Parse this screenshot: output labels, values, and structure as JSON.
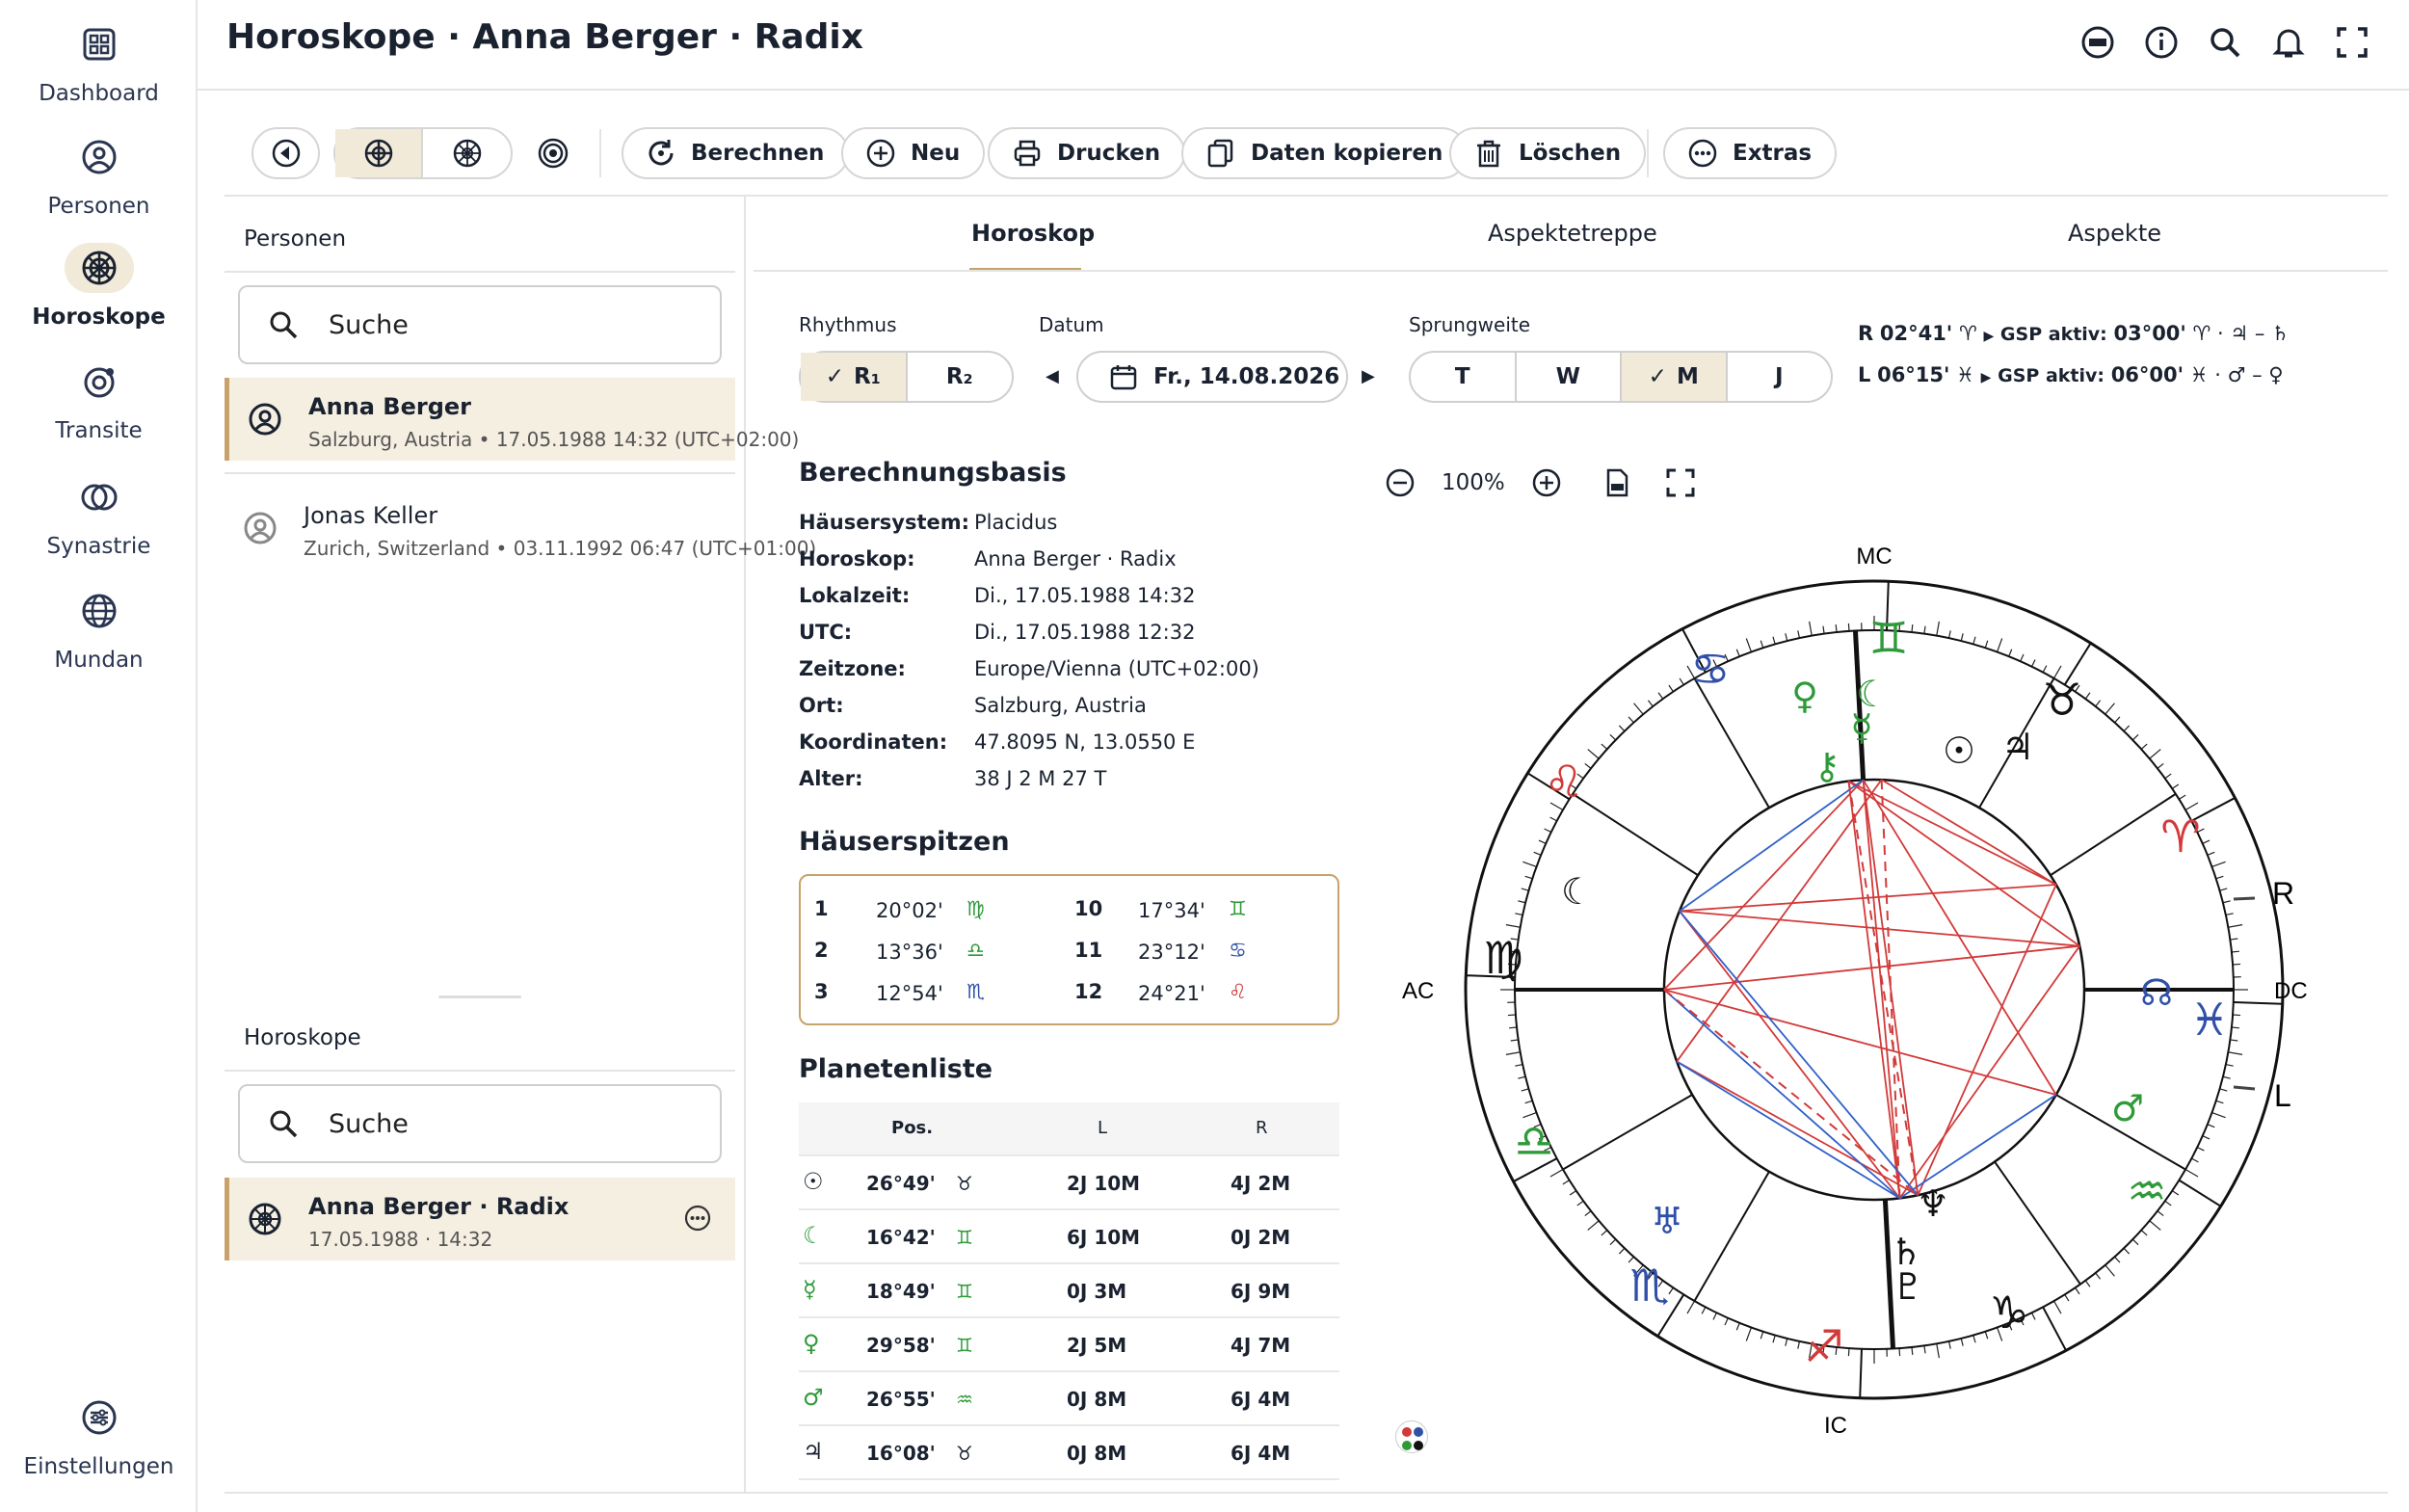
{
  "app": {
    "title": "Horoskope · Anna Berger · Radix"
  },
  "sidebar": {
    "items": [
      {
        "label": "Dashboard"
      },
      {
        "label": "Personen"
      },
      {
        "label": "Horoskope"
      },
      {
        "label": "Transite"
      },
      {
        "label": "Synastrie"
      },
      {
        "label": "Mundan"
      }
    ],
    "settings": "Einstellungen"
  },
  "toolbar": {
    "berechnen": "Berechnen",
    "neu": "Neu",
    "drucken": "Drucken",
    "kopieren": "Daten kopieren",
    "loeschen": "Löschen",
    "extras": "Extras"
  },
  "personen": {
    "title": "Personen",
    "search": "Suche",
    "items": [
      {
        "name": "Anna Berger",
        "sub": "Salzburg, Austria • 17.05.1988 14:32 (UTC+02:00)"
      },
      {
        "name": "Jonas Keller",
        "sub": "Zurich, Switzerland • 03.11.1992 06:47 (UTC+01:00)"
      }
    ]
  },
  "horoskope": {
    "title": "Horoskope",
    "search": "Suche",
    "items": [
      {
        "name": "Anna Berger · Radix",
        "sub": "17.05.1988 · 14:32"
      }
    ]
  },
  "tabs": [
    "Horoskop",
    "Aspektetreppe",
    "Aspekte"
  ],
  "controls": {
    "rhythmus_label": "Rhythmus",
    "r1": "R₁",
    "r2": "R₂",
    "datum_label": "Datum",
    "datum": "Fr., 14.08.2026",
    "sprung_label": "Sprungweite",
    "sprung": [
      "T",
      "W",
      "M",
      "J"
    ],
    "zoom": "100%"
  },
  "gsp": {
    "r_label": "R",
    "r_pos": "02°41'",
    "r_sign": "♈",
    "r_gsp": "GSP aktiv:",
    "r_gsp_val": "03°00'",
    "r_gsp_formula": "♈ · ♃ – ♄",
    "l_label": "L",
    "l_pos": "06°15'",
    "l_sign": "♓",
    "l_gsp": "GSP aktiv:",
    "l_gsp_val": "06°00'",
    "l_gsp_formula": "♓ · ♂ – ♀"
  },
  "basis": {
    "title": "Berechnungsbasis",
    "rows": [
      {
        "k": "Häusersystem:",
        "v": "Placidus"
      },
      {
        "k": "Horoskop:",
        "v": "Anna Berger · Radix"
      },
      {
        "k": "Lokalzeit:",
        "v": "Di., 17.05.1988 14:32"
      },
      {
        "k": "UTC:",
        "v": "Di., 17.05.1988 12:32"
      },
      {
        "k": "Zeitzone:",
        "v": "Europe/Vienna (UTC+02:00)"
      },
      {
        "k": "Ort:",
        "v": "Salzburg, Austria"
      },
      {
        "k": "Koordinaten:",
        "v": "47.8095 N, 13.0550 E"
      },
      {
        "k": "Alter:",
        "v": "38 J 2 M 27 T"
      }
    ]
  },
  "haeuser": {
    "title": "Häuserspitzen",
    "rows": [
      {
        "n": "1",
        "d": "20°02'",
        "s": "♍"
      },
      {
        "n": "2",
        "d": "13°36'",
        "s": "♎"
      },
      {
        "n": "3",
        "d": "12°54'",
        "s": "♏"
      },
      {
        "n": "10",
        "d": "17°34'",
        "s": "♊"
      },
      {
        "n": "11",
        "d": "23°12'",
        "s": "♋"
      },
      {
        "n": "12",
        "d": "24°21'",
        "s": "♌"
      }
    ]
  },
  "planeten": {
    "title": "Planetenliste",
    "headers": [
      "Pos.",
      "L",
      "R"
    ],
    "rows": [
      {
        "p": "☉",
        "pos": "26°49'",
        "s": "♉",
        "l": "2J 10M",
        "r": "4J 2M"
      },
      {
        "p": "☾",
        "pos": "16°42'",
        "s": "♊",
        "l": "6J 10M",
        "r": "0J 2M"
      },
      {
        "p": "☿",
        "pos": "18°49'",
        "s": "♊",
        "l": "0J 3M",
        "r": "6J 9M"
      },
      {
        "p": "♀",
        "pos": "29°58'",
        "s": "♊",
        "l": "2J 5M",
        "r": "4J 7M"
      },
      {
        "p": "♂",
        "pos": "26°55'",
        "s": "♒",
        "l": "0J 8M",
        "r": "6J 4M"
      },
      {
        "p": "♃",
        "pos": "16°08'",
        "s": "♉",
        "l": "0J 8M",
        "r": "6J 4M"
      }
    ]
  },
  "chart": {
    "mc": "MC",
    "ic": "IC",
    "ac": "AC",
    "dc": "DC",
    "r": "R",
    "l": "L"
  },
  "colors": {
    "accent": "#c8a26b",
    "fire": "#d23a3a",
    "earth": "#2f9a3a",
    "air": "#2f9a3a",
    "water": "#3050a8",
    "aspect_red": "#d23a3a",
    "aspect_blue": "#3060c8"
  }
}
